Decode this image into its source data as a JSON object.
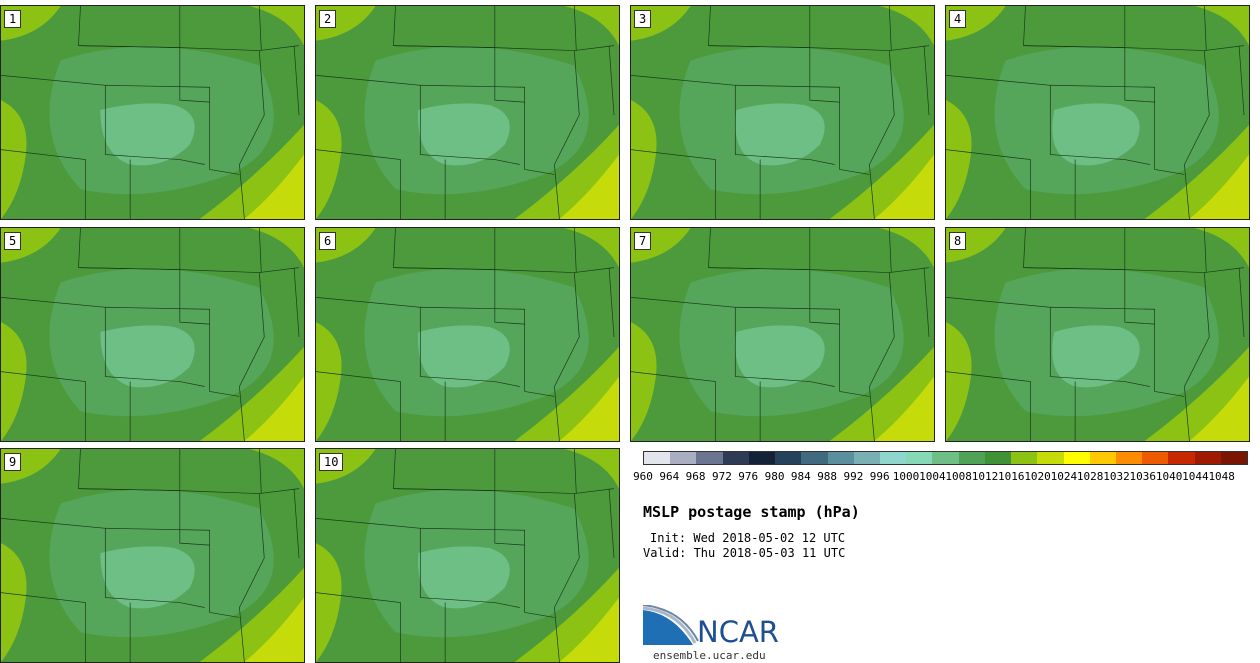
{
  "panels": [
    {
      "label": "1"
    },
    {
      "label": "2"
    },
    {
      "label": "3"
    },
    {
      "label": "4"
    },
    {
      "label": "5"
    },
    {
      "label": "6"
    },
    {
      "label": "7"
    },
    {
      "label": "8"
    },
    {
      "label": "9"
    },
    {
      "label": "10"
    }
  ],
  "colorbar": {
    "ticks": [
      "960",
      "964",
      "968",
      "972",
      "976",
      "980",
      "984",
      "988",
      "992",
      "996",
      "1000",
      "1004",
      "1008",
      "1012",
      "1016",
      "1020",
      "1024",
      "1028",
      "1032",
      "1036",
      "1040",
      "1044",
      "1048"
    ],
    "colors": [
      "#e2e5ec",
      "#a9aec2",
      "#6b7590",
      "#2f3a55",
      "#142238",
      "#26415a",
      "#3f6a80",
      "#5a8f9e",
      "#78b0b4",
      "#8fd6cc",
      "#86d8b6",
      "#6dbf85",
      "#50a356",
      "#3f9334",
      "#8cc214",
      "#c5dc0a",
      "#fefe00",
      "#ffc800",
      "#ff8c00",
      "#ee5a00",
      "#c82800",
      "#a01a00",
      "#7a1500"
    ]
  },
  "title": "MSLP postage stamp (hPa)",
  "init": "Init: Wed 2018-05-02 12 UTC",
  "valid": "Valid: Thu 2018-05-03 11 UTC",
  "logo": {
    "text": "NCAR",
    "url": "ensemble.ucar.edu"
  }
}
